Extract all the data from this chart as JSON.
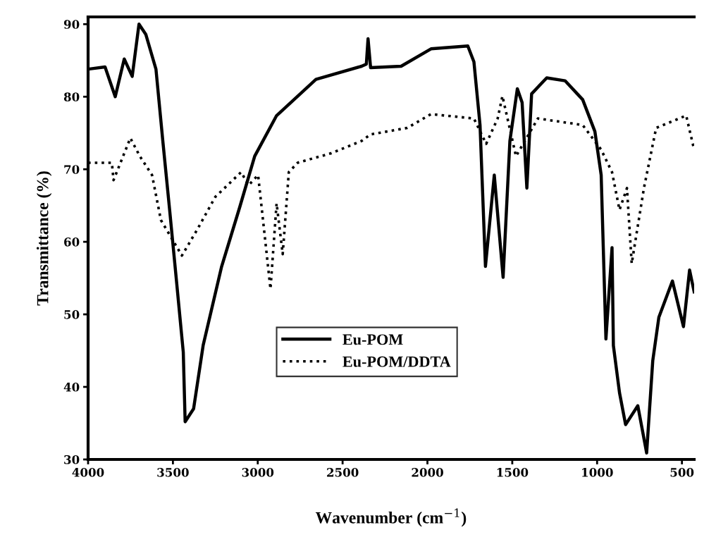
{
  "chart_data": {
    "type": "line",
    "xlabel": "Wavenumber (cm$^{−1}$)",
    "ylabel": "Transmittance (%)",
    "xlim": [
      4000,
      428
    ],
    "ylim": [
      30,
      91
    ],
    "xticks": [
      4000,
      3500,
      3000,
      2500,
      2000,
      1500,
      1000,
      500
    ],
    "yticks": [
      30,
      40,
      50,
      60,
      70,
      80,
      90
    ],
    "grid": false,
    "legend": "bottom",
    "marker": "none",
    "series": [
      {
        "name": "Eu-POM",
        "color": "#000000",
        "line_style": "solid",
        "x": [
          4000,
          3900,
          3840,
          3787,
          3740,
          3700,
          3660,
          3600,
          3560,
          3519,
          3479,
          3439,
          3428,
          3378,
          3322,
          3214,
          3106,
          3018,
          2889,
          2657,
          2388,
          2360,
          2350,
          2335,
          2155,
          1979,
          1762,
          1726,
          1690,
          1658,
          1606,
          1554,
          1514,
          1470,
          1442,
          1414,
          1386,
          1297,
          1189,
          1085,
          1013,
          976,
          948,
          912,
          904,
          868,
          832,
          760,
          708,
          672,
          636,
          556,
          491,
          455,
          428
        ],
        "values": [
          83.8,
          84.1,
          80.0,
          85.2,
          82.8,
          90.0,
          88.6,
          83.8,
          74.0,
          64.3,
          54.6,
          44.8,
          35.2,
          37.0,
          45.7,
          56.5,
          64.8,
          71.8,
          77.4,
          82.4,
          84.2,
          84.5,
          88.0,
          84.0,
          84.2,
          86.6,
          87.0,
          84.8,
          76.1,
          56.6,
          69.2,
          55.1,
          73.9,
          81.1,
          79.2,
          67.4,
          80.4,
          82.6,
          82.2,
          79.6,
          75.2,
          69.2,
          46.6,
          59.2,
          45.7,
          39.2,
          34.8,
          37.4,
          30.9,
          43.6,
          49.6,
          54.6,
          48.3,
          56.1,
          53.1
        ]
      },
      {
        "name": "Eu-POM/DDTA",
        "color": "#000000",
        "line_style": "dotted",
        "x": [
          4000,
          3860,
          3850,
          3751,
          3695,
          3623,
          3571,
          3447,
          3354,
          3250,
          3098,
          3054,
          2998,
          2925,
          2889,
          2853,
          2817,
          2765,
          2568,
          2388,
          2336,
          2119,
          1979,
          1726,
          1654,
          1586,
          1558,
          1478,
          1349,
          1085,
          976,
          912,
          868,
          824,
          796,
          724,
          652,
          475,
          428
        ],
        "values": [
          70.9,
          70.9,
          68.5,
          74.3,
          71.8,
          69.2,
          63.0,
          58.1,
          61.8,
          66.2,
          69.6,
          67.8,
          69.2,
          53.5,
          65.3,
          58.3,
          69.6,
          70.9,
          72.2,
          73.9,
          74.8,
          75.7,
          77.6,
          77.0,
          73.5,
          77.0,
          80.1,
          71.8,
          77.0,
          76.1,
          72.7,
          69.6,
          64.4,
          67.4,
          57.0,
          67.4,
          75.7,
          77.4,
          72.7
        ]
      }
    ]
  }
}
